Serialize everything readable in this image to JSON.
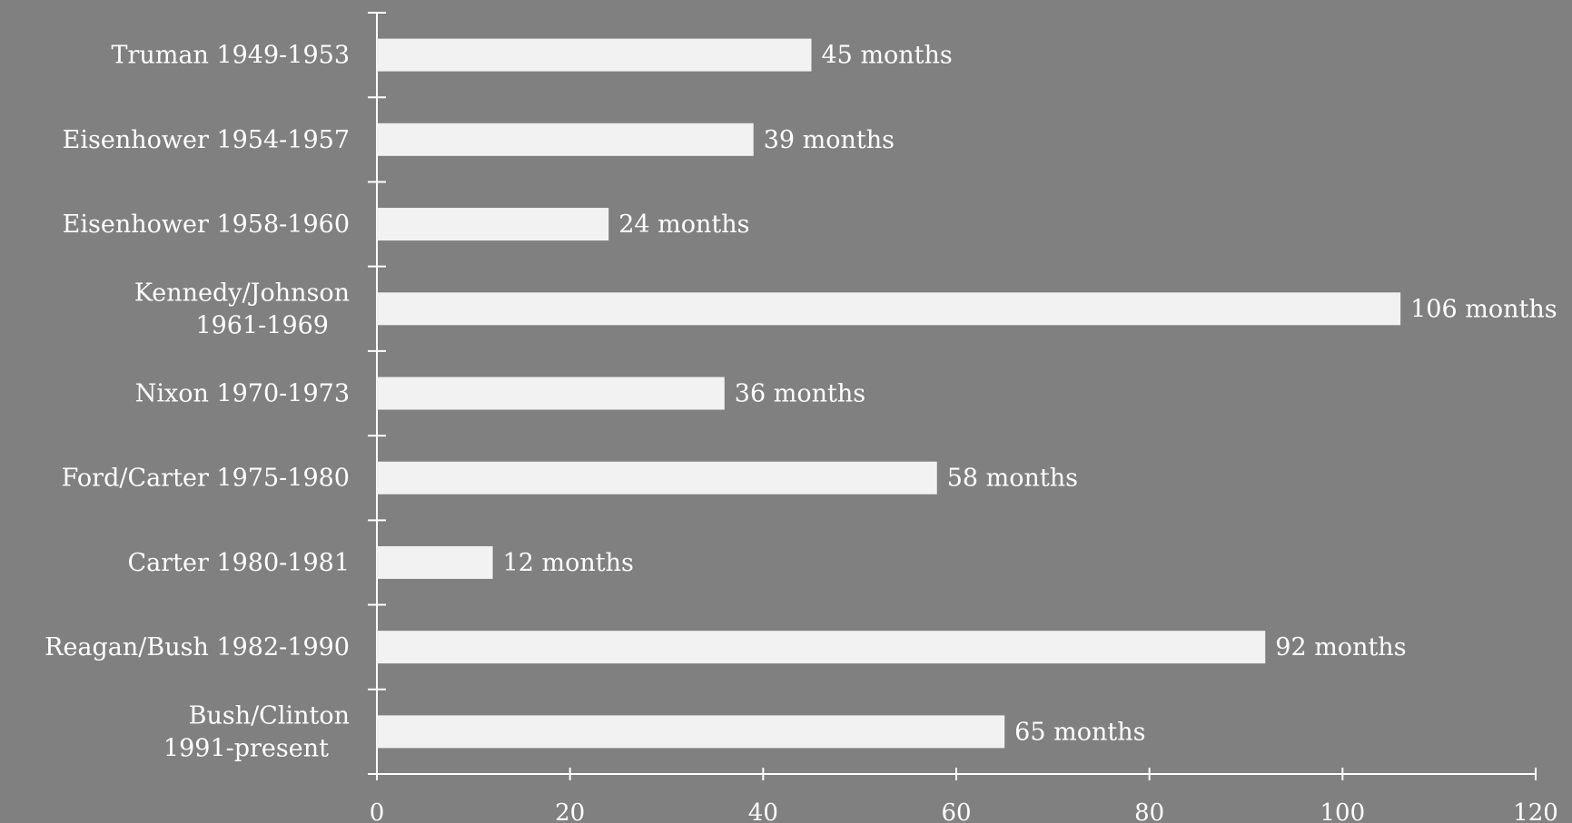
{
  "chart_data": {
    "type": "bar",
    "orientation": "horizontal",
    "categories": [
      [
        "Truman 1949-1953"
      ],
      [
        "Eisenhower 1954-1957"
      ],
      [
        "Eisenhower 1958-1960"
      ],
      [
        "Kennedy/Johnson",
        "1961-1969"
      ],
      [
        "Nixon 1970-1973"
      ],
      [
        "Ford/Carter 1975-1980"
      ],
      [
        "Carter 1980-1981"
      ],
      [
        "Reagan/Bush 1982-1990"
      ],
      [
        "Bush/Clinton",
        "1991-present"
      ]
    ],
    "values": [
      45,
      39,
      24,
      106,
      36,
      58,
      12,
      92,
      65
    ],
    "data_labels": [
      "45 months",
      "39 months",
      "24 months",
      "106 months",
      "36 months",
      "58 months",
      "12 months",
      "92 months",
      "65 months"
    ],
    "xlim": [
      0,
      120
    ],
    "xticks": [
      0,
      20,
      40,
      60,
      80,
      100,
      120
    ],
    "title": "",
    "xlabel": "",
    "ylabel": "",
    "grid": false,
    "colors": {
      "background": "#808080",
      "bar": "#f2f2f2",
      "text": "#ffffff",
      "axis": "#ffffff"
    }
  }
}
